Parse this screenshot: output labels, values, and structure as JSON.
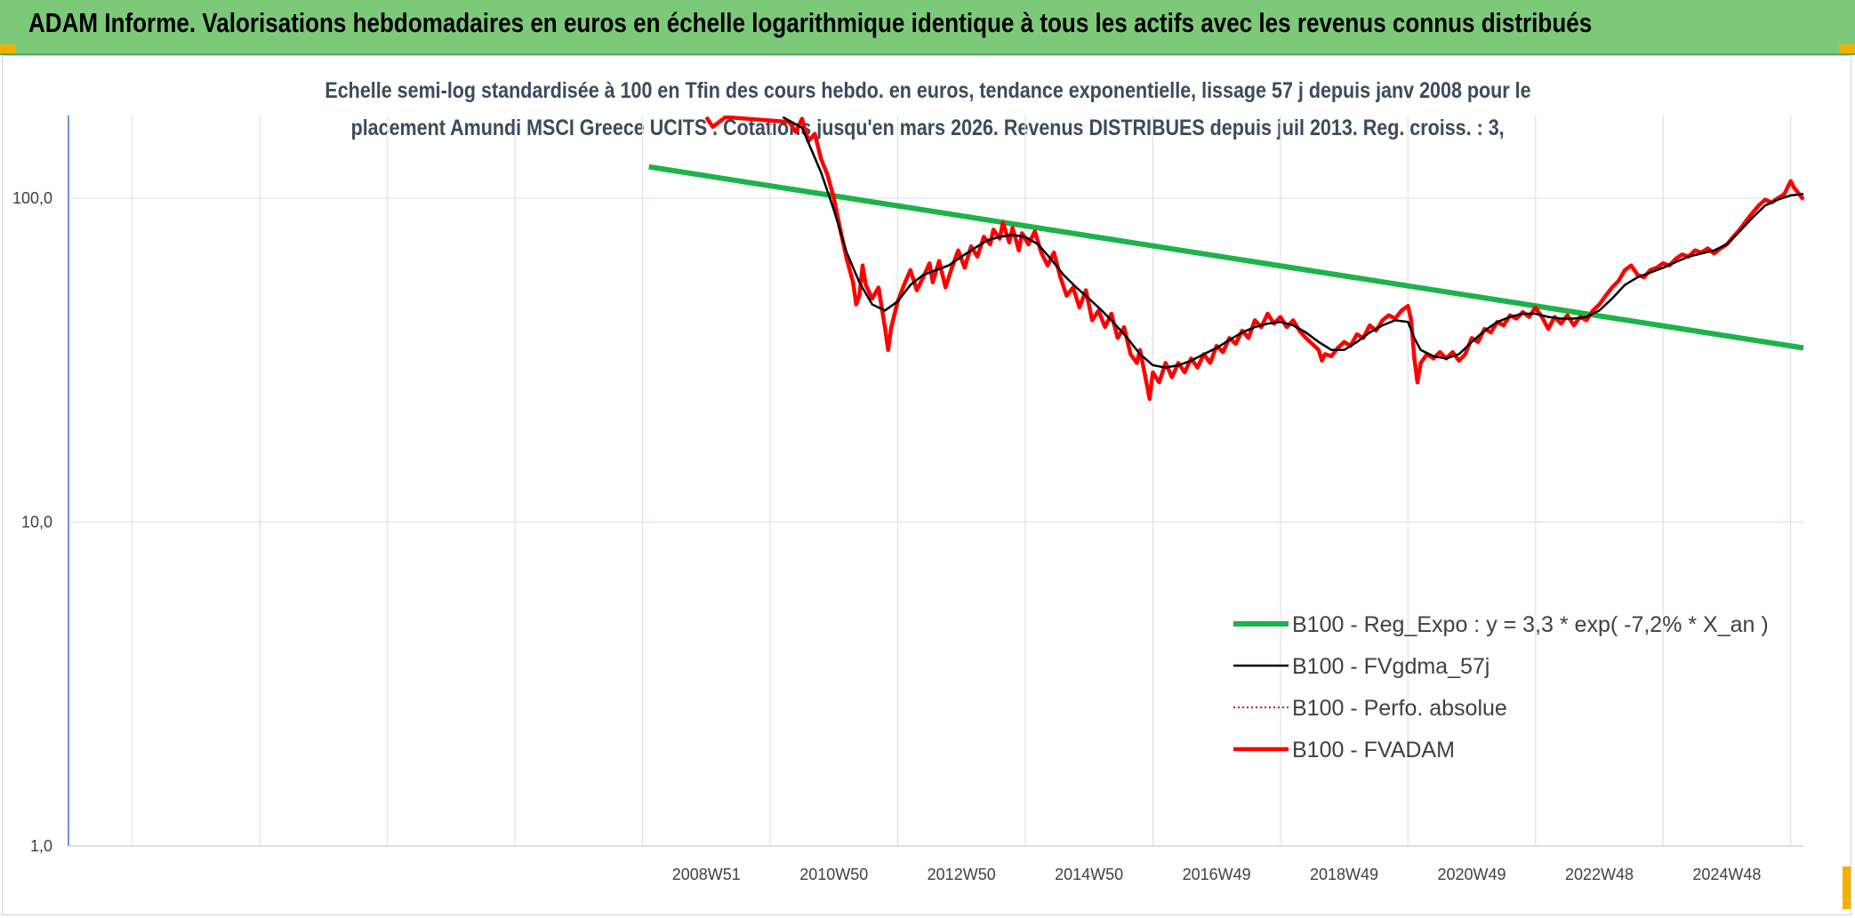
{
  "header": {
    "title": "ADAM Informe. Valorisations hebdomadaires en euros en échelle logarithmique identique à tous les actifs avec les revenus connus distribués"
  },
  "chart_data": {
    "type": "line",
    "title": "Echelle semi-log standardisée à 100 en Tfin des cours hebdo. en euros, tendance exponentielle, lissage 57 j depuis janv 2008 pour le",
    "subtitle": "placement Amundi MSCI Greece UCITS . Cotations jusqu'en mars 2026. Revenus DISTRIBUES depuis juil 2013. Reg. croiss. : 3,",
    "y_scale": "log",
    "ylim": [
      1,
      180
    ],
    "yticks": [
      1,
      10,
      100
    ],
    "ytick_labels": [
      "1,0",
      "10,0",
      "100,0"
    ],
    "xlim": [
      1999.0,
      2026.2
    ],
    "xtick_labels": [
      {
        "x": 2009.0,
        "label": "2008W51"
      },
      {
        "x": 2011.0,
        "label": "2010W50"
      },
      {
        "x": 2013.0,
        "label": "2012W50"
      },
      {
        "x": 2015.0,
        "label": "2014W50"
      },
      {
        "x": 2017.0,
        "label": "2016W49"
      },
      {
        "x": 2019.0,
        "label": "2018W49"
      },
      {
        "x": 2021.0,
        "label": "2020W49"
      },
      {
        "x": 2023.0,
        "label": "2022W48"
      },
      {
        "x": 2025.0,
        "label": "2024W48"
      }
    ],
    "grid": true,
    "legend_position": "bottom-right",
    "colors": {
      "regression": "#1db34a",
      "smoothed": "#000000",
      "perf": "#e00000",
      "fvadam": "#ff0000"
    },
    "series": [
      {
        "name": "B100 - Reg_Expo : y = 3,3 * exp( -7,2% *  X_an )",
        "style": "thick-green",
        "points": [
          [
            2008.1,
            125.0
          ],
          [
            2026.2,
            34.5
          ]
        ]
      },
      {
        "name": "B100 - FVgdma_57j",
        "style": "thin-black",
        "points": [
          [
            2010.2,
            178
          ],
          [
            2010.5,
            165
          ],
          [
            2010.8,
            120
          ],
          [
            2011.0,
            92
          ],
          [
            2011.2,
            68
          ],
          [
            2011.4,
            55
          ],
          [
            2011.6,
            47
          ],
          [
            2011.8,
            45
          ],
          [
            2012.0,
            48
          ],
          [
            2012.2,
            54
          ],
          [
            2012.4,
            58
          ],
          [
            2012.6,
            60
          ],
          [
            2012.8,
            62
          ],
          [
            2013.0,
            66
          ],
          [
            2013.2,
            70
          ],
          [
            2013.4,
            74
          ],
          [
            2013.6,
            76
          ],
          [
            2013.8,
            77
          ],
          [
            2014.0,
            76
          ],
          [
            2014.2,
            72
          ],
          [
            2014.4,
            65
          ],
          [
            2014.6,
            58
          ],
          [
            2014.8,
            53
          ],
          [
            2015.0,
            49
          ],
          [
            2015.2,
            45
          ],
          [
            2015.4,
            41
          ],
          [
            2015.6,
            37
          ],
          [
            2015.8,
            33
          ],
          [
            2016.0,
            30.5
          ],
          [
            2016.2,
            30
          ],
          [
            2016.4,
            30.5
          ],
          [
            2016.6,
            31.5
          ],
          [
            2016.8,
            33
          ],
          [
            2017.0,
            34.5
          ],
          [
            2017.2,
            36.5
          ],
          [
            2017.4,
            38.5
          ],
          [
            2017.6,
            40
          ],
          [
            2017.8,
            41
          ],
          [
            2018.0,
            41.5
          ],
          [
            2018.2,
            40.5
          ],
          [
            2018.4,
            38.5
          ],
          [
            2018.6,
            36
          ],
          [
            2018.8,
            34
          ],
          [
            2019.0,
            34
          ],
          [
            2019.2,
            36
          ],
          [
            2019.4,
            38.5
          ],
          [
            2019.6,
            40.5
          ],
          [
            2019.8,
            42
          ],
          [
            2020.0,
            41.5
          ],
          [
            2020.1,
            37
          ],
          [
            2020.2,
            34
          ],
          [
            2020.4,
            32.5
          ],
          [
            2020.6,
            32
          ],
          [
            2020.8,
            33
          ],
          [
            2021.0,
            36
          ],
          [
            2021.2,
            39
          ],
          [
            2021.4,
            41.5
          ],
          [
            2021.6,
            43
          ],
          [
            2021.8,
            44
          ],
          [
            2022.0,
            44
          ],
          [
            2022.2,
            43
          ],
          [
            2022.4,
            42.5
          ],
          [
            2022.6,
            42.5
          ],
          [
            2022.8,
            43
          ],
          [
            2023.0,
            45
          ],
          [
            2023.2,
            49
          ],
          [
            2023.4,
            54
          ],
          [
            2023.6,
            57
          ],
          [
            2023.8,
            59
          ],
          [
            2024.0,
            61
          ],
          [
            2024.2,
            63.5
          ],
          [
            2024.4,
            66
          ],
          [
            2024.6,
            67.5
          ],
          [
            2024.8,
            69
          ],
          [
            2025.0,
            72
          ],
          [
            2025.2,
            79
          ],
          [
            2025.4,
            87
          ],
          [
            2025.6,
            95
          ],
          [
            2025.8,
            99
          ],
          [
            2026.0,
            102
          ],
          [
            2026.2,
            103
          ]
        ]
      },
      {
        "name": "B100 - Perfo. absolue",
        "style": "dotted-red",
        "points": []
      },
      {
        "name": "B100 - FVADAM",
        "style": "thick-red",
        "points": [
          [
            2009.0,
            178
          ],
          [
            2009.1,
            166
          ],
          [
            2009.3,
            178
          ],
          [
            2010.3,
            172
          ],
          [
            2010.4,
            160
          ],
          [
            2010.5,
            176
          ],
          [
            2010.6,
            150
          ],
          [
            2010.7,
            158
          ],
          [
            2010.8,
            132
          ],
          [
            2010.9,
            118
          ],
          [
            2011.0,
            100
          ],
          [
            2011.1,
            80
          ],
          [
            2011.2,
            65
          ],
          [
            2011.3,
            55
          ],
          [
            2011.35,
            47
          ],
          [
            2011.4,
            50
          ],
          [
            2011.45,
            62
          ],
          [
            2011.5,
            54
          ],
          [
            2011.6,
            49
          ],
          [
            2011.7,
            53
          ],
          [
            2011.8,
            40
          ],
          [
            2011.85,
            34
          ],
          [
            2011.9,
            40
          ],
          [
            2012.0,
            48
          ],
          [
            2012.1,
            54
          ],
          [
            2012.2,
            60
          ],
          [
            2012.3,
            52
          ],
          [
            2012.4,
            57
          ],
          [
            2012.5,
            63
          ],
          [
            2012.55,
            55
          ],
          [
            2012.65,
            64
          ],
          [
            2012.75,
            53
          ],
          [
            2012.85,
            61
          ],
          [
            2012.95,
            69
          ],
          [
            2013.05,
            61
          ],
          [
            2013.15,
            71
          ],
          [
            2013.25,
            66
          ],
          [
            2013.35,
            76
          ],
          [
            2013.45,
            72
          ],
          [
            2013.5,
            80
          ],
          [
            2013.6,
            75
          ],
          [
            2013.65,
            84
          ],
          [
            2013.75,
            73
          ],
          [
            2013.8,
            81
          ],
          [
            2013.9,
            69
          ],
          [
            2013.95,
            78
          ],
          [
            2014.05,
            72
          ],
          [
            2014.15,
            79
          ],
          [
            2014.25,
            68
          ],
          [
            2014.35,
            62
          ],
          [
            2014.45,
            68
          ],
          [
            2014.55,
            57
          ],
          [
            2014.65,
            50
          ],
          [
            2014.75,
            53
          ],
          [
            2014.85,
            46
          ],
          [
            2014.95,
            52
          ],
          [
            2015.05,
            42
          ],
          [
            2015.15,
            45
          ],
          [
            2015.25,
            40
          ],
          [
            2015.35,
            44
          ],
          [
            2015.45,
            37
          ],
          [
            2015.55,
            40
          ],
          [
            2015.65,
            33
          ],
          [
            2015.75,
            31
          ],
          [
            2015.8,
            34
          ],
          [
            2015.9,
            27
          ],
          [
            2015.95,
            24
          ],
          [
            2016.0,
            29
          ],
          [
            2016.1,
            27
          ],
          [
            2016.2,
            31
          ],
          [
            2016.3,
            28
          ],
          [
            2016.4,
            31
          ],
          [
            2016.5,
            29
          ],
          [
            2016.6,
            32
          ],
          [
            2016.7,
            30
          ],
          [
            2016.8,
            33
          ],
          [
            2016.9,
            31
          ],
          [
            2017.0,
            35
          ],
          [
            2017.1,
            33.5
          ],
          [
            2017.2,
            37
          ],
          [
            2017.3,
            35.5
          ],
          [
            2017.4,
            39
          ],
          [
            2017.5,
            37
          ],
          [
            2017.6,
            42
          ],
          [
            2017.7,
            40
          ],
          [
            2017.8,
            44
          ],
          [
            2017.9,
            41
          ],
          [
            2018.0,
            43
          ],
          [
            2018.1,
            40
          ],
          [
            2018.2,
            42
          ],
          [
            2018.3,
            39
          ],
          [
            2018.4,
            37
          ],
          [
            2018.5,
            35.5
          ],
          [
            2018.6,
            34
          ],
          [
            2018.65,
            31.5
          ],
          [
            2018.7,
            33
          ],
          [
            2018.8,
            32.5
          ],
          [
            2018.9,
            34.5
          ],
          [
            2019.0,
            36
          ],
          [
            2019.1,
            35
          ],
          [
            2019.2,
            38
          ],
          [
            2019.3,
            37
          ],
          [
            2019.4,
            40.5
          ],
          [
            2019.5,
            39
          ],
          [
            2019.6,
            42
          ],
          [
            2019.7,
            43.5
          ],
          [
            2019.8,
            42.5
          ],
          [
            2019.9,
            45
          ],
          [
            2020.0,
            46.5
          ],
          [
            2020.05,
            42
          ],
          [
            2020.1,
            32
          ],
          [
            2020.15,
            27
          ],
          [
            2020.2,
            31
          ],
          [
            2020.3,
            33
          ],
          [
            2020.4,
            32
          ],
          [
            2020.5,
            33.5
          ],
          [
            2020.6,
            32
          ],
          [
            2020.7,
            33.5
          ],
          [
            2020.8,
            31.5
          ],
          [
            2020.9,
            33
          ],
          [
            2021.0,
            37
          ],
          [
            2021.1,
            36
          ],
          [
            2021.2,
            39.5
          ],
          [
            2021.3,
            38.5
          ],
          [
            2021.4,
            41.5
          ],
          [
            2021.5,
            40.5
          ],
          [
            2021.6,
            43.5
          ],
          [
            2021.7,
            42.5
          ],
          [
            2021.8,
            44.5
          ],
          [
            2021.9,
            43
          ],
          [
            2022.0,
            46
          ],
          [
            2022.1,
            43
          ],
          [
            2022.2,
            39.5
          ],
          [
            2022.3,
            43
          ],
          [
            2022.4,
            41
          ],
          [
            2022.5,
            43.5
          ],
          [
            2022.6,
            40.5
          ],
          [
            2022.7,
            43
          ],
          [
            2022.8,
            42
          ],
          [
            2022.9,
            45
          ],
          [
            2023.0,
            47
          ],
          [
            2023.1,
            50
          ],
          [
            2023.2,
            53
          ],
          [
            2023.3,
            55.5
          ],
          [
            2023.4,
            60
          ],
          [
            2023.5,
            62
          ],
          [
            2023.6,
            58
          ],
          [
            2023.7,
            57
          ],
          [
            2023.8,
            60
          ],
          [
            2023.9,
            61
          ],
          [
            2024.0,
            63
          ],
          [
            2024.1,
            62
          ],
          [
            2024.2,
            65
          ],
          [
            2024.3,
            67
          ],
          [
            2024.4,
            66
          ],
          [
            2024.5,
            69
          ],
          [
            2024.6,
            68
          ],
          [
            2024.7,
            70
          ],
          [
            2024.8,
            67.5
          ],
          [
            2024.9,
            70
          ],
          [
            2025.0,
            72
          ],
          [
            2025.1,
            76
          ],
          [
            2025.2,
            80
          ],
          [
            2025.3,
            85
          ],
          [
            2025.4,
            90
          ],
          [
            2025.5,
            95
          ],
          [
            2025.6,
            99
          ],
          [
            2025.7,
            97
          ],
          [
            2025.8,
            100
          ],
          [
            2025.9,
            103
          ],
          [
            2026.0,
            113
          ],
          [
            2026.05,
            108
          ],
          [
            2026.1,
            105
          ],
          [
            2026.2,
            99
          ]
        ]
      }
    ]
  }
}
